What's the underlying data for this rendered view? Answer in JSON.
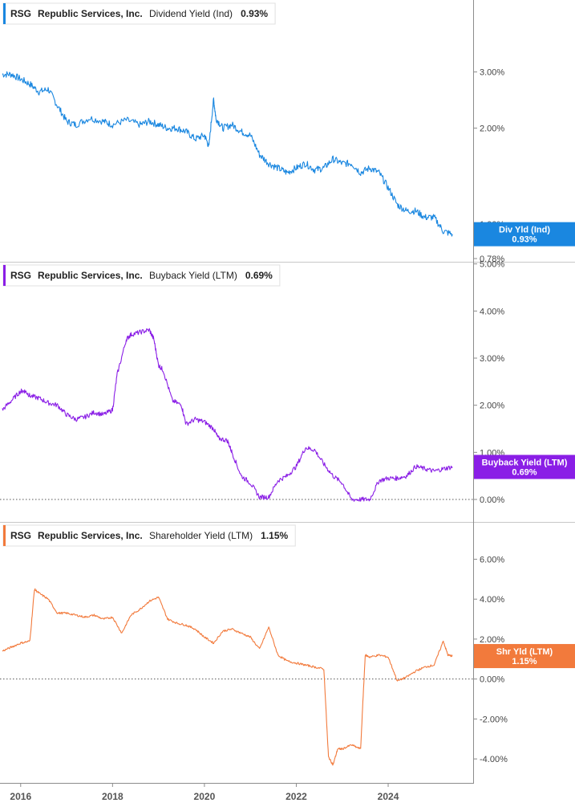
{
  "chart_data": [
    {
      "type": "line",
      "legend": {
        "ticker": "RSG",
        "company": "Republic Services, Inc.",
        "metric": "Dividend Yield (Ind)",
        "value": "0.93%",
        "placement": "top-left"
      },
      "color": "#1a87e0",
      "scale": "log",
      "ylim": [
        0.78,
        4.0
      ],
      "y_ticks": [
        {
          "value": 3.0,
          "label": "3.00%"
        },
        {
          "value": 2.0,
          "label": "2.00%"
        },
        {
          "value": 1.0,
          "label": "1.00%"
        },
        {
          "value": 0.78,
          "label": "0.78%"
        }
      ],
      "flag": {
        "label": "Div Yld (Ind)",
        "value": "0.93%",
        "y": 0.93
      },
      "x": [
        2015.6,
        2015.8,
        2016.0,
        2016.2,
        2016.4,
        2016.6,
        2016.8,
        2017.0,
        2017.2,
        2017.5,
        2017.8,
        2018.0,
        2018.3,
        2018.6,
        2018.8,
        2019.0,
        2019.2,
        2019.4,
        2019.6,
        2019.8,
        2020.0,
        2020.1,
        2020.2,
        2020.25,
        2020.4,
        2020.6,
        2020.8,
        2021.0,
        2021.2,
        2021.4,
        2021.6,
        2021.8,
        2022.0,
        2022.2,
        2022.4,
        2022.6,
        2022.8,
        2023.0,
        2023.2,
        2023.4,
        2023.6,
        2023.8,
        2024.0,
        2024.2,
        2024.4,
        2024.6,
        2024.8,
        2025.0,
        2025.2,
        2025.4
      ],
      "y": [
        2.95,
        2.95,
        2.85,
        2.75,
        2.6,
        2.65,
        2.35,
        2.1,
        2.05,
        2.15,
        2.1,
        2.05,
        2.12,
        2.05,
        2.1,
        2.05,
        2.0,
        2.0,
        1.95,
        1.85,
        1.9,
        1.75,
        2.45,
        2.15,
        2.0,
        2.05,
        1.95,
        1.9,
        1.65,
        1.55,
        1.5,
        1.45,
        1.5,
        1.55,
        1.48,
        1.5,
        1.6,
        1.55,
        1.55,
        1.45,
        1.5,
        1.45,
        1.3,
        1.15,
        1.1,
        1.1,
        1.05,
        1.05,
        0.95,
        0.93
      ]
    },
    {
      "type": "line",
      "legend": {
        "ticker": "RSG",
        "company": "Republic Services, Inc.",
        "metric": "Buyback Yield (LTM)",
        "value": "0.69%",
        "placement": "top-left"
      },
      "color": "#8a1ee6",
      "ylim": [
        0.0,
        4.5
      ],
      "y_ticks": [
        {
          "value": 5.0,
          "label": "5.00%"
        },
        {
          "value": 4.0,
          "label": "4.00%"
        },
        {
          "value": 3.0,
          "label": "3.00%"
        },
        {
          "value": 2.0,
          "label": "2.00%"
        },
        {
          "value": 1.0,
          "label": "1.00%"
        },
        {
          "value": 0.0,
          "label": "0.00%"
        }
      ],
      "flag": {
        "label": "Buyback Yield (LTM)",
        "value": "0.69%",
        "y": 0.69
      },
      "x": [
        2015.6,
        2015.8,
        2016.0,
        2016.1,
        2016.2,
        2016.4,
        2016.6,
        2016.8,
        2017.0,
        2017.2,
        2017.4,
        2017.6,
        2017.8,
        2018.0,
        2018.1,
        2018.3,
        2018.4,
        2018.6,
        2018.8,
        2018.9,
        2019.0,
        2019.1,
        2019.3,
        2019.5,
        2019.6,
        2019.8,
        2020.0,
        2020.2,
        2020.3,
        2020.5,
        2020.6,
        2020.8,
        2021.0,
        2021.2,
        2021.4,
        2021.6,
        2021.8,
        2022.0,
        2022.2,
        2022.4,
        2022.6,
        2022.8,
        2023.0,
        2023.2,
        2023.4,
        2023.6,
        2023.8,
        2024.0,
        2024.2,
        2024.4,
        2024.6,
        2024.8,
        2025.0,
        2025.2,
        2025.4
      ],
      "y": [
        1.9,
        2.1,
        2.3,
        2.3,
        2.2,
        2.15,
        2.05,
        2.0,
        1.8,
        1.7,
        1.75,
        1.85,
        1.8,
        1.9,
        2.65,
        3.4,
        3.5,
        3.55,
        3.6,
        3.4,
        2.85,
        2.75,
        2.1,
        2.0,
        1.6,
        1.7,
        1.65,
        1.5,
        1.3,
        1.25,
        1.0,
        0.5,
        0.35,
        0.05,
        0.05,
        0.4,
        0.5,
        0.7,
        1.1,
        1.05,
        0.75,
        0.5,
        0.35,
        0.0,
        0.0,
        0.0,
        0.4,
        0.45,
        0.45,
        0.5,
        0.7,
        0.65,
        0.6,
        0.65,
        0.69
      ]
    },
    {
      "type": "line",
      "legend": {
        "ticker": "RSG",
        "company": "Republic Services, Inc.",
        "metric": "Shareholder Yield (LTM)",
        "value": "1.15%",
        "placement": "top-left"
      },
      "color": "#f27a3c",
      "ylim": [
        -5.0,
        6.5
      ],
      "y_ticks": [
        {
          "value": 6.0,
          "label": "6.00%"
        },
        {
          "value": 4.0,
          "label": "4.00%"
        },
        {
          "value": 2.0,
          "label": "2.00%"
        },
        {
          "value": 0.0,
          "label": "0.00%"
        },
        {
          "value": -2.0,
          "label": "-2.00%"
        },
        {
          "value": -4.0,
          "label": "-4.00%"
        }
      ],
      "flag": {
        "label": "Shr Yld (LTM)",
        "value": "1.15%",
        "y": 1.15
      },
      "x": [
        2015.6,
        2015.8,
        2016.0,
        2016.2,
        2016.3,
        2016.4,
        2016.6,
        2016.8,
        2017.0,
        2017.2,
        2017.4,
        2017.6,
        2017.8,
        2018.0,
        2018.2,
        2018.4,
        2018.6,
        2018.8,
        2019.0,
        2019.2,
        2019.4,
        2019.6,
        2019.8,
        2020.0,
        2020.2,
        2020.4,
        2020.6,
        2020.8,
        2021.0,
        2021.2,
        2021.4,
        2021.6,
        2021.8,
        2022.0,
        2022.2,
        2022.4,
        2022.6,
        2022.7,
        2022.8,
        2022.9,
        2023.0,
        2023.2,
        2023.4,
        2023.5,
        2023.6,
        2023.8,
        2024.0,
        2024.2,
        2024.4,
        2024.6,
        2024.8,
        2025.0,
        2025.2,
        2025.3,
        2025.4
      ],
      "y": [
        1.4,
        1.6,
        1.8,
        1.9,
        4.5,
        4.3,
        4.0,
        3.3,
        3.3,
        3.2,
        3.1,
        3.2,
        3.0,
        3.1,
        2.3,
        3.2,
        3.5,
        3.9,
        4.1,
        3.0,
        2.8,
        2.7,
        2.5,
        2.1,
        1.8,
        2.4,
        2.5,
        2.3,
        2.1,
        1.5,
        2.6,
        1.2,
        0.9,
        0.8,
        0.7,
        0.6,
        0.5,
        -3.9,
        -4.3,
        -3.5,
        -3.5,
        -3.3,
        -3.5,
        1.2,
        1.1,
        1.2,
        1.1,
        -0.1,
        0.1,
        0.4,
        0.6,
        0.7,
        1.9,
        1.2,
        1.15
      ]
    }
  ],
  "x_axis": {
    "ticks": [
      {
        "value": 2016,
        "label": "2016"
      },
      {
        "value": 2018,
        "label": "2018"
      },
      {
        "value": 2020,
        "label": "2020"
      },
      {
        "value": 2022,
        "label": "2022"
      },
      {
        "value": 2024,
        "label": "2024"
      }
    ],
    "xlim": [
      2015.55,
      2025.85
    ]
  }
}
